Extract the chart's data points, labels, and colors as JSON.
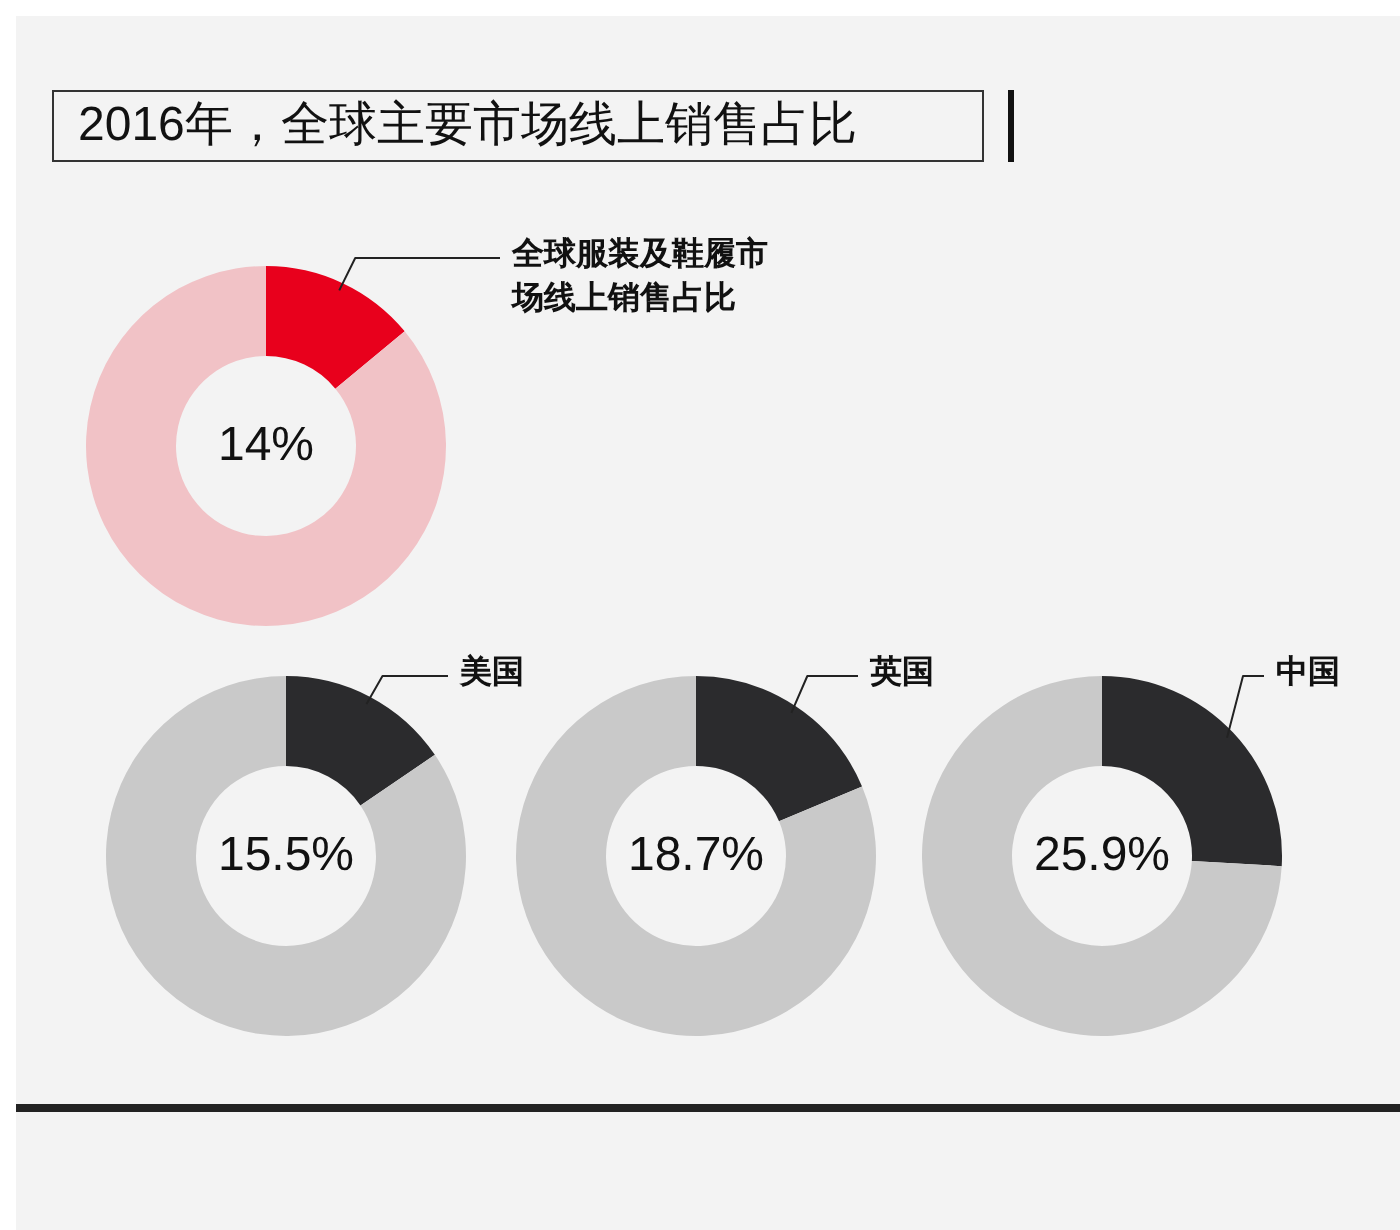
{
  "chart_data": [
    {
      "type": "donut",
      "title": "2016年，全球主要市场线上销售占比",
      "categories": [
        "全球服装及鞋履市场线上销售占比",
        null
      ],
      "values": [
        14,
        86
      ],
      "colors": [
        "#e8001c",
        "#f1c2c6"
      ],
      "value_labels": [
        "14%",
        null
      ]
    },
    {
      "type": "donut",
      "categories": [
        "美国",
        null
      ],
      "values": [
        15.5,
        84.5
      ],
      "colors": [
        "#2b2b2d",
        "#c9c9c9"
      ],
      "value_labels": [
        "15.5%",
        null
      ]
    },
    {
      "type": "donut",
      "categories": [
        "英国",
        null
      ],
      "values": [
        18.7,
        81.3
      ],
      "colors": [
        "#2b2b2d",
        "#c9c9c9"
      ],
      "value_labels": [
        "18.7%",
        null
      ]
    },
    {
      "type": "donut",
      "categories": [
        "中国",
        null
      ],
      "values": [
        25.9,
        74.1
      ],
      "colors": [
        "#2b2b2d",
        "#c9c9c9"
      ],
      "value_labels": [
        "25.9%",
        null
      ]
    }
  ]
}
